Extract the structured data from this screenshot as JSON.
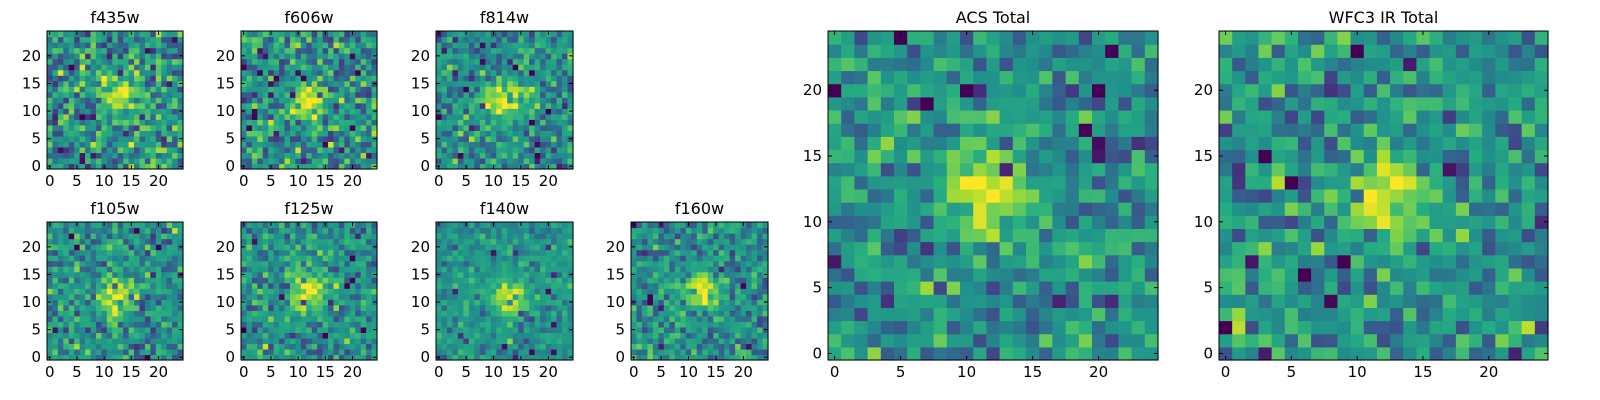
{
  "chart_data": [
    {
      "type": "heatmap",
      "title": "f435w",
      "xlim": [
        0,
        24
      ],
      "ylim": [
        0,
        24
      ],
      "x_ticks": [
        "0",
        "5",
        "10",
        "15",
        "20"
      ],
      "y_ticks": [
        "0",
        "5",
        "10",
        "15",
        "20"
      ],
      "colormap": "viridis",
      "source_peak": {
        "x": 13,
        "y": 13
      },
      "noise": "high",
      "grid": false
    },
    {
      "type": "heatmap",
      "title": "f606w",
      "xlim": [
        0,
        24
      ],
      "ylim": [
        0,
        24
      ],
      "x_ticks": [
        "0",
        "5",
        "10",
        "15",
        "20"
      ],
      "y_ticks": [
        "0",
        "5",
        "10",
        "15",
        "20"
      ],
      "colormap": "viridis",
      "source_peak": {
        "x": 12,
        "y": 12
      },
      "noise": "high",
      "grid": false
    },
    {
      "type": "heatmap",
      "title": "f814w",
      "xlim": [
        0,
        24
      ],
      "ylim": [
        0,
        24
      ],
      "x_ticks": [
        "0",
        "5",
        "10",
        "15",
        "20"
      ],
      "y_ticks": [
        "0",
        "5",
        "10",
        "15",
        "20"
      ],
      "colormap": "viridis",
      "source_peak": {
        "x": 12,
        "y": 12
      },
      "noise": "medium",
      "grid": false
    },
    {
      "type": "heatmap",
      "title": "f105w",
      "xlim": [
        0,
        24
      ],
      "ylim": [
        0,
        24
      ],
      "x_ticks": [
        "0",
        "5",
        "10",
        "15",
        "20"
      ],
      "y_ticks": [
        "0",
        "5",
        "10",
        "15",
        "20"
      ],
      "colormap": "viridis",
      "source_peak": {
        "x": 12,
        "y": 11
      },
      "noise": "medium",
      "grid": false
    },
    {
      "type": "heatmap",
      "title": "f125w",
      "xlim": [
        0,
        24
      ],
      "ylim": [
        0,
        24
      ],
      "x_ticks": [
        "0",
        "5",
        "10",
        "15",
        "20"
      ],
      "y_ticks": [
        "0",
        "5",
        "10",
        "15",
        "20"
      ],
      "colormap": "viridis",
      "source_peak": {
        "x": 12,
        "y": 12
      },
      "noise": "medium",
      "grid": false
    },
    {
      "type": "heatmap",
      "title": "f140w",
      "xlim": [
        0,
        24
      ],
      "ylim": [
        0,
        24
      ],
      "x_ticks": [
        "0",
        "5",
        "10",
        "15",
        "20"
      ],
      "y_ticks": [
        "0",
        "5",
        "10",
        "15",
        "20"
      ],
      "colormap": "viridis",
      "source_peak": {
        "x": 13,
        "y": 11
      },
      "noise": "low",
      "grid": false
    },
    {
      "type": "heatmap",
      "title": "f160w",
      "xlim": [
        0,
        24
      ],
      "ylim": [
        0,
        24
      ],
      "x_ticks": [
        "0",
        "5",
        "10",
        "15",
        "20"
      ],
      "y_ticks": [
        "0",
        "5",
        "10",
        "15",
        "20"
      ],
      "colormap": "viridis",
      "source_peak": {
        "x": 12,
        "y": 12
      },
      "noise": "medium",
      "grid": false
    },
    {
      "type": "heatmap",
      "title": "ACS Total",
      "xlim": [
        0,
        24
      ],
      "ylim": [
        0,
        24
      ],
      "x_ticks": [
        "0",
        "5",
        "10",
        "15",
        "20"
      ],
      "y_ticks": [
        "0",
        "5",
        "10",
        "15",
        "20"
      ],
      "colormap": "viridis",
      "source_peak": {
        "x": 11.5,
        "y": 12.5
      },
      "noise": "medium",
      "grid": false
    },
    {
      "type": "heatmap",
      "title": "WFC3 IR Total",
      "xlim": [
        0,
        24
      ],
      "ylim": [
        0,
        24
      ],
      "x_ticks": [
        "0",
        "5",
        "10",
        "15",
        "20"
      ],
      "y_ticks": [
        "0",
        "5",
        "10",
        "15",
        "20"
      ],
      "colormap": "viridis",
      "source_peak": {
        "x": 12,
        "y": 12
      },
      "noise": "medium",
      "grid": false
    }
  ]
}
